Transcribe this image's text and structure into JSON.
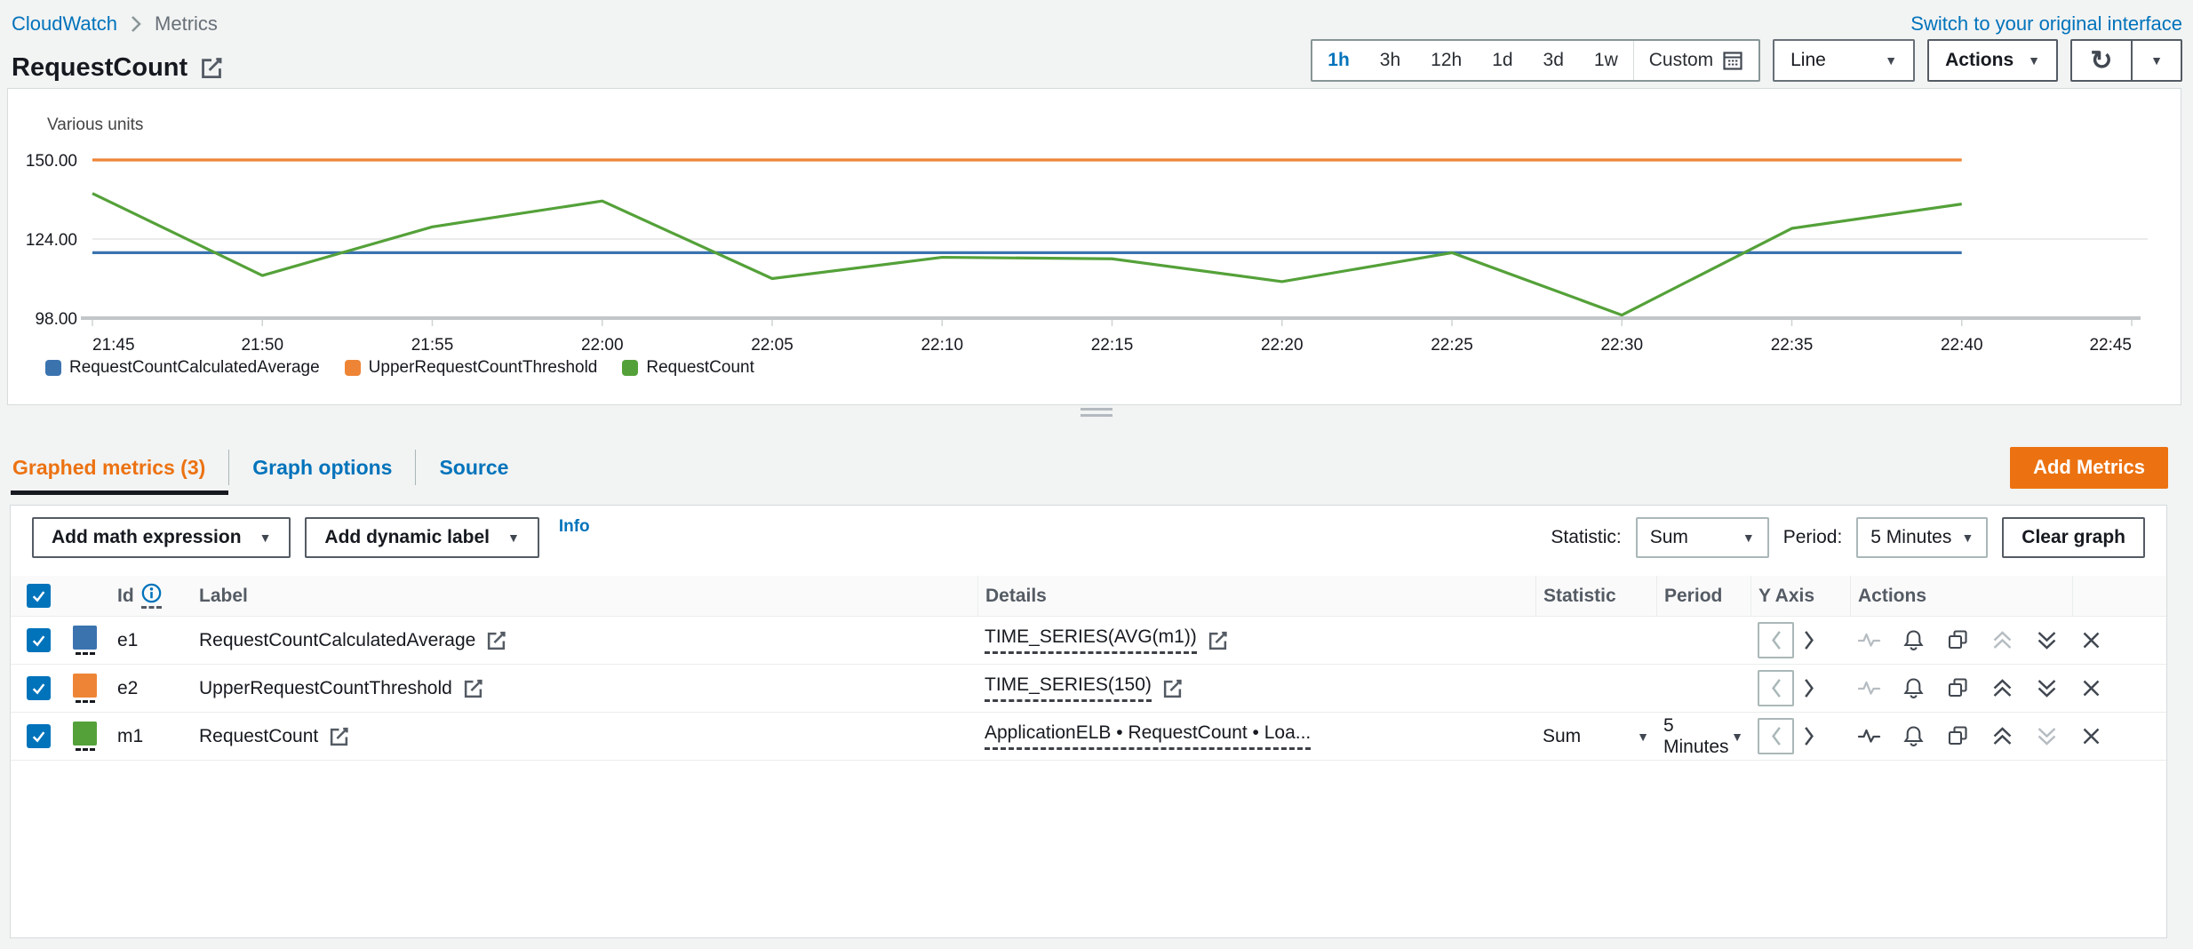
{
  "header": {
    "breadcrumb_root": "CloudWatch",
    "breadcrumb_current": "Metrics",
    "switch_link": "Switch to your original interface",
    "title": "RequestCount"
  },
  "toolbar": {
    "time_ranges": [
      "1h",
      "3h",
      "12h",
      "1d",
      "3d",
      "1w"
    ],
    "selected_range": "1h",
    "custom_label": "Custom",
    "chart_type": "Line",
    "actions_label": "Actions"
  },
  "tabs": [
    {
      "label": "Graphed metrics (3)",
      "active": true
    },
    {
      "label": "Graph options",
      "active": false
    },
    {
      "label": "Source",
      "active": false
    }
  ],
  "buttons": {
    "add_metrics": "Add Metrics"
  },
  "metrics_toolbar": {
    "add_math_expression": "Add math expression",
    "add_dynamic_label": "Add dynamic label",
    "info_link": "Info",
    "statistic_label": "Statistic:",
    "statistic_value": "Sum",
    "period_label": "Period:",
    "period_value": "5 Minutes",
    "clear_graph": "Clear graph"
  },
  "table": {
    "select_all_checked": true,
    "columns": {
      "id": "Id",
      "label": "Label",
      "details": "Details",
      "statistic": "Statistic",
      "period": "Period",
      "y_axis": "Y Axis",
      "actions": "Actions"
    },
    "rows": [
      {
        "checked": true,
        "color": "#3b73af",
        "id": "e1",
        "label": "RequestCountCalculatedAverage",
        "details": "TIME_SERIES(AVG(m1))",
        "statistic": "",
        "period": "",
        "actions": {
          "pulse_enabled": false,
          "up_enabled": false,
          "down_enabled": true
        },
        "action_icons": [
          "view-metric",
          "create-alarm",
          "duplicate",
          "move-up",
          "move-down",
          "remove"
        ]
      },
      {
        "checked": true,
        "color": "#ee8536",
        "id": "e2",
        "label": "UpperRequestCountThreshold",
        "details": "TIME_SERIES(150)",
        "statistic": "",
        "period": "",
        "actions": {
          "pulse_enabled": false,
          "up_enabled": true,
          "down_enabled": true
        },
        "action_icons": [
          "view-metric",
          "create-alarm",
          "duplicate",
          "move-up",
          "move-down",
          "remove"
        ]
      },
      {
        "checked": true,
        "color": "#54a139",
        "id": "m1",
        "label": "RequestCount",
        "details": "ApplicationELB • RequestCount • Loa...",
        "statistic": "Sum",
        "period": "5 Minutes",
        "actions": {
          "pulse_enabled": true,
          "up_enabled": true,
          "down_enabled": false
        },
        "action_icons": [
          "view-metric",
          "create-alarm",
          "duplicate",
          "move-up",
          "move-down",
          "remove"
        ]
      }
    ]
  },
  "chart_data": {
    "type": "line",
    "units_label": "Various units",
    "x_ticks": [
      "21:45",
      "21:50",
      "21:55",
      "22:00",
      "22:05",
      "22:10",
      "22:15",
      "22:20",
      "22:25",
      "22:30",
      "22:35",
      "22:40",
      "22:45"
    ],
    "ylim": [
      98,
      150
    ],
    "y_ticks": [
      {
        "value": 150,
        "label": "150.00"
      },
      {
        "value": 124,
        "label": "124.00"
      },
      {
        "value": 98,
        "label": "98.00"
      }
    ],
    "grid": "horizontal-only",
    "legend_position": "bottom-left",
    "series": [
      {
        "name": "RequestCountCalculatedAverage",
        "color": "#3b73af",
        "values": [
          119.5,
          119.5,
          119.5,
          119.5,
          119.5,
          119.5,
          119.5,
          119.5,
          119.5,
          119.5,
          119.5,
          119.5
        ]
      },
      {
        "name": "UpperRequestCountThreshold",
        "color": "#ee8536",
        "values": [
          150,
          150,
          150,
          150,
          150,
          150,
          150,
          150,
          150,
          150,
          150,
          150
        ]
      },
      {
        "name": "RequestCount",
        "color": "#54a139",
        "values": [
          139,
          112,
          128,
          136.5,
          111,
          118,
          117.5,
          110,
          119.5,
          99,
          127.5,
          135.5
        ]
      }
    ]
  },
  "colors": {
    "accent_orange": "#ec7211",
    "link_blue": "#0073bb",
    "checkbox_blue": "#0073bb",
    "grid_light": "#ebebeb",
    "axis_baseline": "#c2c6c8"
  }
}
